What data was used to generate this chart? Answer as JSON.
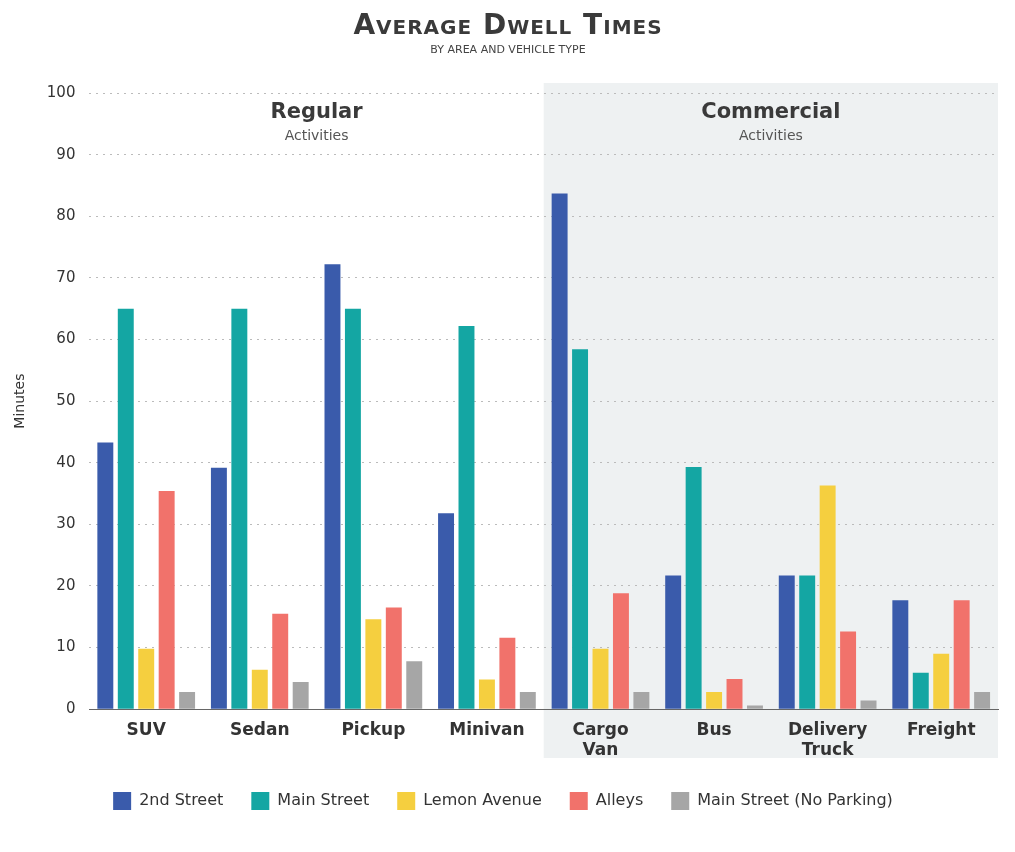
{
  "chart_data": {
    "type": "bar",
    "title": "Average Dwell Times",
    "subtitle": "BY AREA AND VEHICLE TYPE",
    "ylabel": "Minutes",
    "categories": [
      "SUV",
      "Sedan",
      "Pickup",
      "Minivan",
      "Cargo Van",
      "Bus",
      "Delivery Truck",
      "Freight"
    ],
    "series": [
      {
        "name": "2nd Street",
        "color": "#3a5bab",
        "values": [
          43.3,
          39.2,
          72.2,
          31.8,
          83.7,
          21.7,
          21.7,
          17.7
        ]
      },
      {
        "name": "Main Street",
        "color": "#14a6a3",
        "values": [
          65,
          65,
          65,
          62.2,
          58.4,
          39.3,
          21.7,
          5.9
        ]
      },
      {
        "name": "Lemon Avenue",
        "color": "#f5cf3f",
        "values": [
          9.8,
          6.4,
          14.6,
          4.8,
          9.8,
          2.8,
          36.3,
          9
        ]
      },
      {
        "name": "Alleys",
        "color": "#f1726b",
        "values": [
          35.4,
          15.5,
          16.5,
          11.6,
          18.8,
          4.9,
          12.6,
          17.7
        ]
      },
      {
        "name": "Main Street (No Parking)",
        "color": "#a6a6a6",
        "values": [
          2.8,
          4.4,
          7.8,
          2.8,
          2.8,
          0.6,
          1.4,
          2.8
        ]
      }
    ],
    "bands": [
      {
        "axis": "x",
        "from": "Cargo Van",
        "to": "Freight",
        "label": "Commercial\nActivities",
        "color": "#eef1f2"
      }
    ],
    "annotations": [
      "Regular\nActivities"
    ],
    "ylim": [
      0,
      100
    ],
    "yticks": [
      0,
      10,
      20,
      30,
      40,
      50,
      60,
      70,
      80,
      90,
      100
    ],
    "grid": "y",
    "legend": "bottom"
  }
}
